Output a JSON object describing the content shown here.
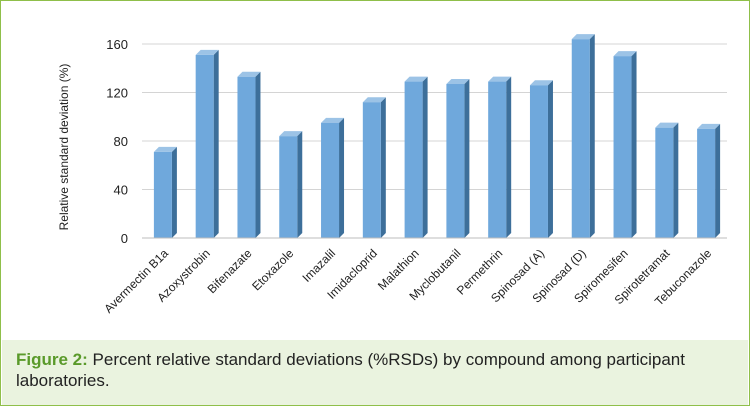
{
  "chart_data": {
    "type": "bar",
    "title": "",
    "xlabel": "",
    "ylabel": "Relative standard deviation (%)",
    "ylim": [
      0,
      160
    ],
    "yticks": [
      0,
      40,
      80,
      120,
      160
    ],
    "grid": true,
    "categories": [
      "Avermectin B1a",
      "Azoxystrobin",
      "Bifenazate",
      "Etoxazole",
      "Imazalil",
      "Imidacloprid",
      "Malathion",
      "Myclobutanil",
      "Permethrin",
      "Spinosad (A)",
      "Spinosad (D)",
      "Spiromesifen",
      "Spirotetramat",
      "Tebuconazole"
    ],
    "values": [
      71,
      151,
      133,
      84,
      95,
      112,
      129,
      127,
      129,
      126,
      164,
      150,
      91,
      90
    ],
    "colors": {
      "bar_front": "#6fa8dc",
      "bar_side": "#3d6f9a",
      "bar_top": "#9cc3e6",
      "grid": "#d4d4d4"
    }
  },
  "caption": {
    "label": "Figure 2:",
    "text": " Percent relative standard deviations (%RSDs) by compound among participant laboratories."
  }
}
